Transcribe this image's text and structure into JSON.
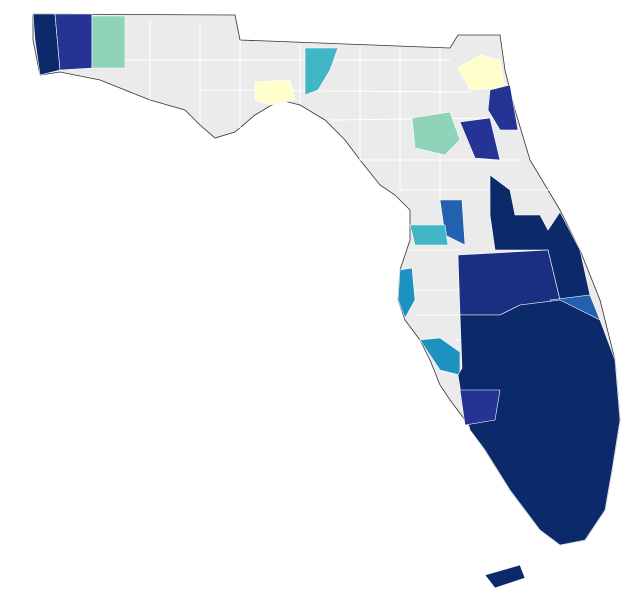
{
  "map": {
    "base_color": "#ebebeb",
    "border_color": "#ffffff",
    "regions": [
      {
        "color": "#0c2a6a"
      },
      {
        "color": "#253494"
      },
      {
        "color": "#8fd4b8"
      },
      {
        "color": "#ffffcc"
      },
      {
        "color": "#41b6c4"
      },
      {
        "color": "#ffffcc"
      },
      {
        "color": "#253494"
      },
      {
        "color": "#8fd4b8"
      },
      {
        "color": "#253494"
      },
      {
        "color": "#0c2a6a"
      },
      {
        "color": "#2361b0"
      },
      {
        "color": "#41b6c4"
      },
      {
        "color": "#1a2f82"
      },
      {
        "color": "#1d91c0"
      },
      {
        "color": "#2361b0"
      },
      {
        "color": "#1d91c0"
      },
      {
        "color": "#0c2a6a"
      },
      {
        "color": "#253494"
      },
      {
        "color": "#0c2a6a"
      }
    ]
  }
}
